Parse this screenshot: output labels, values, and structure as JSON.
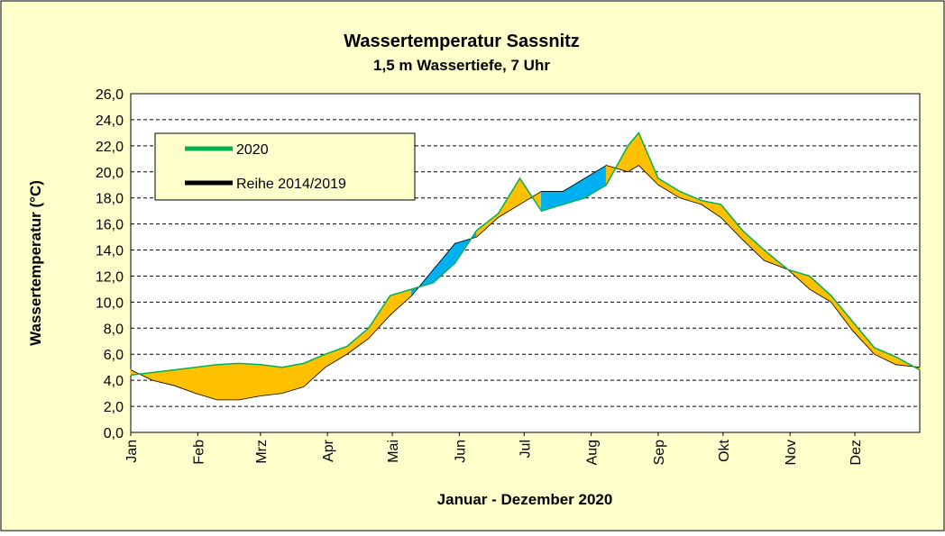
{
  "chart_data": {
    "type": "line",
    "title": "Wassertemperatur Sassnitz",
    "subtitle": "1,5 m Wassertiefe, 7 Uhr",
    "x_label": "Januar - Dezember 2020",
    "y_label": "Wassertemperatur (°C)",
    "x": [
      1,
      11,
      21,
      31,
      41,
      51,
      61,
      71,
      81,
      91,
      101,
      111,
      121,
      131,
      141,
      151,
      161,
      171,
      181,
      191,
      201,
      211,
      221,
      231,
      236,
      245,
      255,
      265,
      274,
      284,
      294,
      305,
      315,
      325,
      335,
      345,
      355,
      366
    ],
    "series": [
      {
        "name": "2020",
        "color": "#00b050",
        "values": [
          4.4,
          4.6,
          4.8,
          5.0,
          5.2,
          5.3,
          5.2,
          5.0,
          5.3,
          6.0,
          6.6,
          8.0,
          10.5,
          11.0,
          11.5,
          13.0,
          15.5,
          16.8,
          19.5,
          17.0,
          17.5,
          18.0,
          19.0,
          22.0,
          23.0,
          19.5,
          18.5,
          17.8,
          17.5,
          15.5,
          14.0,
          12.5,
          12.0,
          10.5,
          8.5,
          6.5,
          5.8,
          4.8
        ]
      },
      {
        "name": "Reihe 2014/2019",
        "color": "#000000",
        "values": [
          4.8,
          4.0,
          3.6,
          3.0,
          2.5,
          2.5,
          2.8,
          3.0,
          3.5,
          5.0,
          6.0,
          7.2,
          9.0,
          10.5,
          12.5,
          14.5,
          15.0,
          16.5,
          17.5,
          18.5,
          18.5,
          19.5,
          20.5,
          20.0,
          20.5,
          19.0,
          18.0,
          17.5,
          16.5,
          14.8,
          13.2,
          12.5,
          11.0,
          10.0,
          7.8,
          6.0,
          5.2,
          5.0
        ]
      }
    ],
    "fill_above": "#ffc000",
    "fill_below": "#00b0f0",
    "xlim": [
      1,
      366
    ],
    "xticks": [
      {
        "value": 1,
        "label": "Jan"
      },
      {
        "value": 32,
        "label": "Feb"
      },
      {
        "value": 61,
        "label": "Mrz"
      },
      {
        "value": 92,
        "label": "Apr"
      },
      {
        "value": 122,
        "label": "Mai"
      },
      {
        "value": 153,
        "label": "Jun"
      },
      {
        "value": 183,
        "label": "Jul"
      },
      {
        "value": 214,
        "label": "Aug"
      },
      {
        "value": 245,
        "label": "Sep"
      },
      {
        "value": 275,
        "label": "Okt"
      },
      {
        "value": 306,
        "label": "Nov"
      },
      {
        "value": 336,
        "label": "Dez"
      }
    ],
    "ylim": [
      0,
      26
    ],
    "yticks": [
      {
        "value": 0,
        "label": "0,0"
      },
      {
        "value": 2,
        "label": "2,0"
      },
      {
        "value": 4,
        "label": "4,0"
      },
      {
        "value": 6,
        "label": "6,0"
      },
      {
        "value": 8,
        "label": "8,0"
      },
      {
        "value": 10,
        "label": "10,0"
      },
      {
        "value": 12,
        "label": "12,0"
      },
      {
        "value": 14,
        "label": "14,0"
      },
      {
        "value": 16,
        "label": "16,0"
      },
      {
        "value": 18,
        "label": "18,0"
      },
      {
        "value": 20,
        "label": "20,0"
      },
      {
        "value": 22,
        "label": "22,0"
      },
      {
        "value": 24,
        "label": "24,0"
      },
      {
        "value": 26,
        "label": "26,0"
      }
    ],
    "grid": true
  }
}
